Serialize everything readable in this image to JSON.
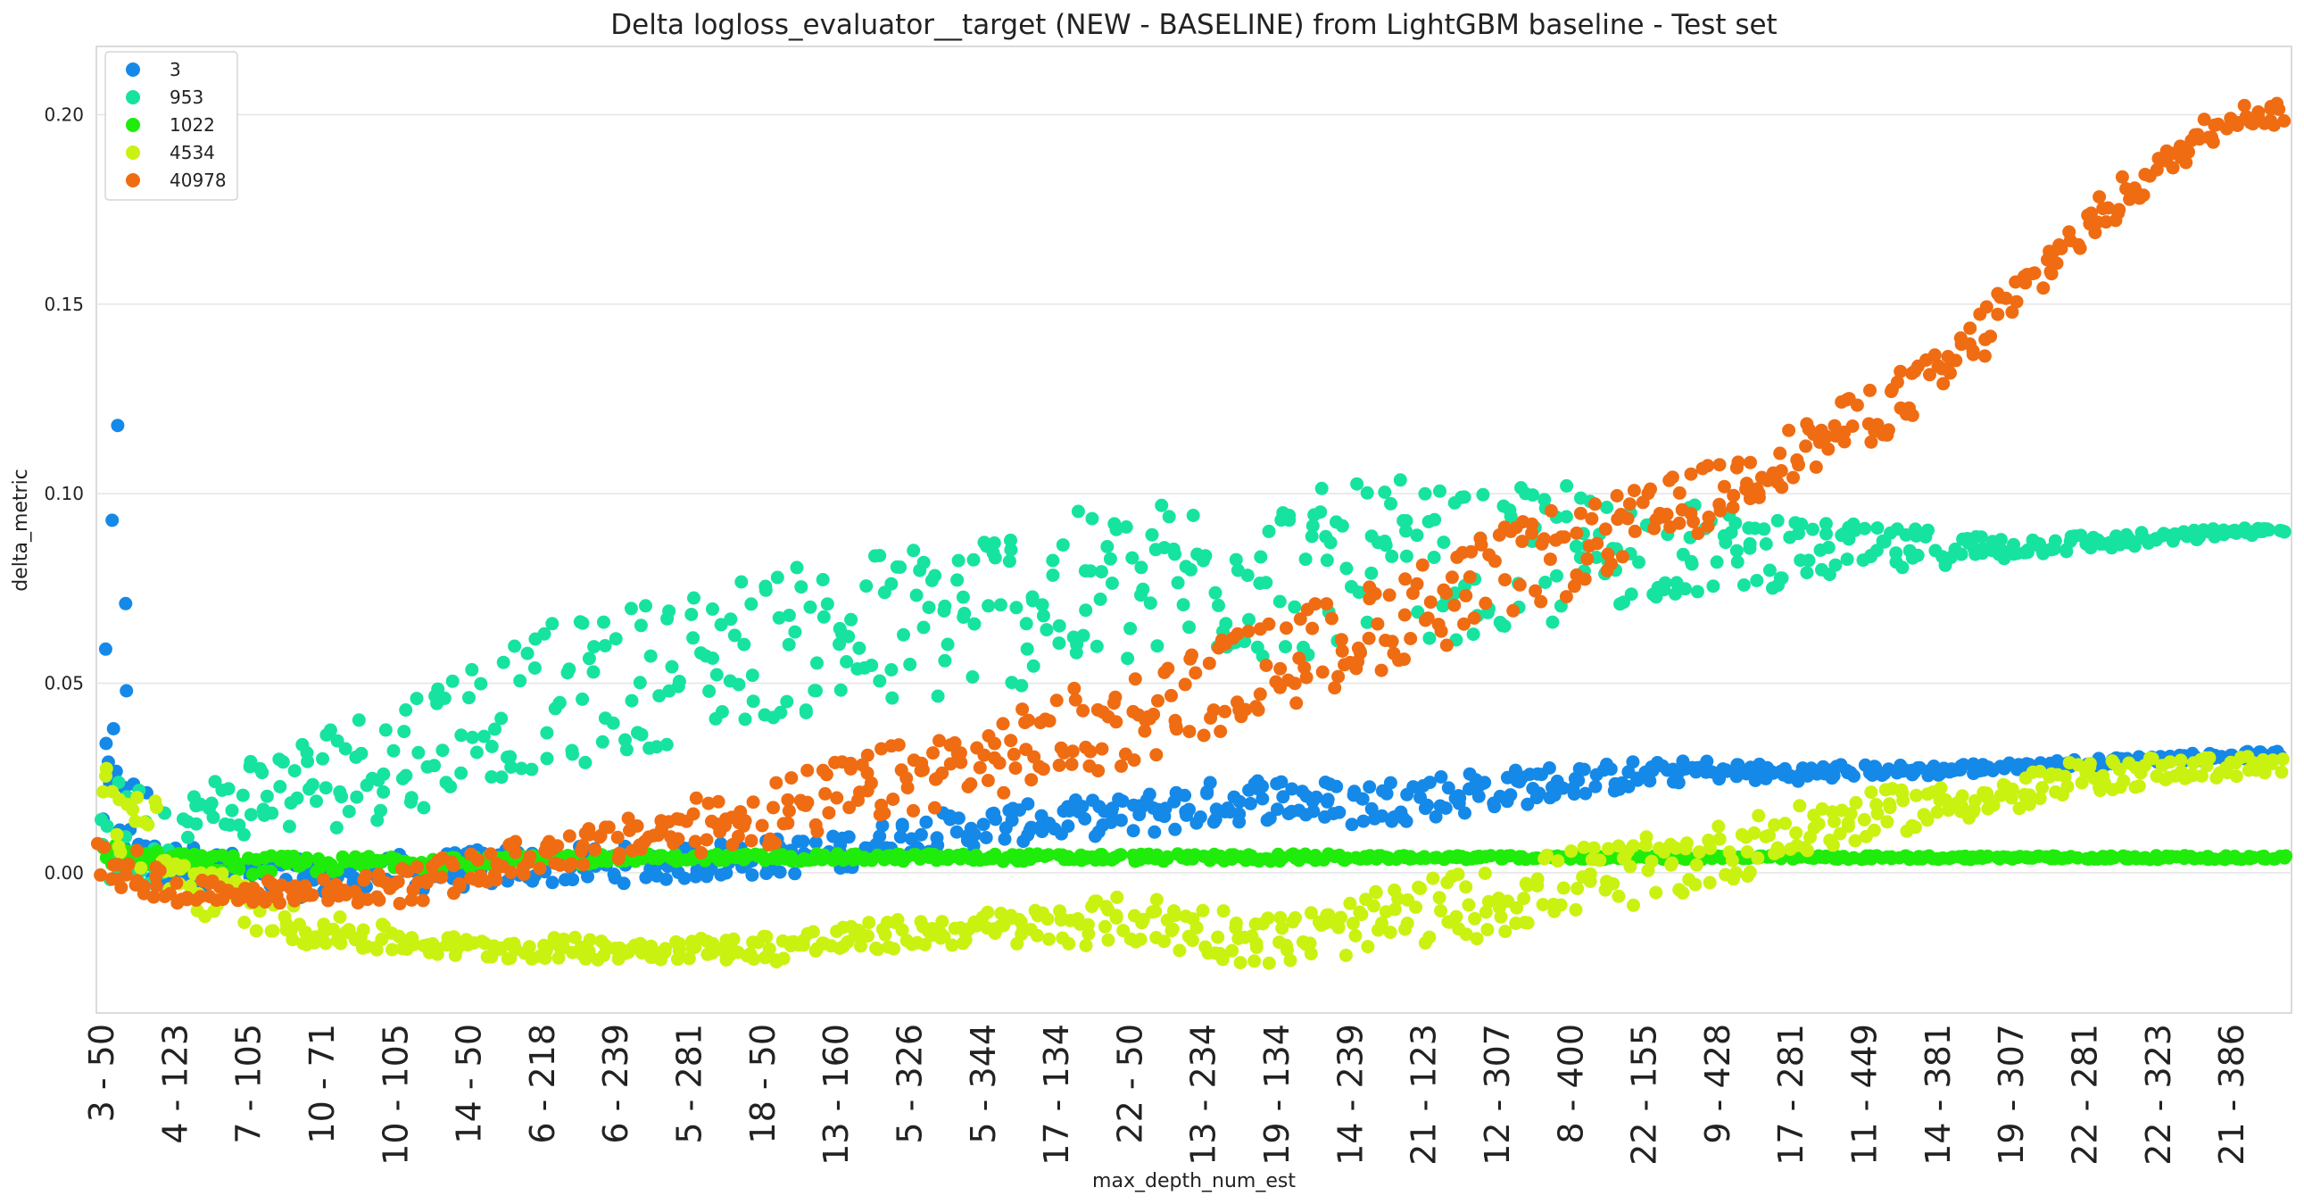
{
  "chart_data": {
    "type": "scatter",
    "title": "Delta logloss_evaluator__target (NEW - BASELINE) from LightGBM baseline - Test set",
    "xlabel": "max_depth_num_est",
    "ylabel": "delta_metric",
    "ylim": [
      -0.037,
      0.218
    ],
    "yticks": [
      "0.00",
      "0.05",
      "0.10",
      "0.15",
      "0.20"
    ],
    "ytick_values": [
      0.0,
      0.05,
      0.1,
      0.15,
      0.2
    ],
    "grid": true,
    "legend_position": "top-left",
    "x_tick_labels": [
      "3 - 50",
      "4 - 123",
      "7 - 105",
      "10 - 71",
      "10 - 105",
      "14 - 50",
      "6 - 218",
      "6 - 239",
      "5 - 281",
      "18 - 50",
      "13 - 160",
      "5 - 326",
      "5 - 344",
      "17 - 134",
      "22 - 50",
      "13 - 234",
      "19 - 134",
      "14 - 239",
      "21 - 123",
      "12 - 307",
      "8 - 400",
      "22 - 155",
      "9 - 428",
      "17 - 281",
      "11 - 449",
      "14 - 381",
      "19 - 307",
      "22 - 281",
      "22 - 323",
      "21 - 386"
    ],
    "n_ticks": 30,
    "series": [
      {
        "name": "3",
        "color": "#1589e8",
        "approx_centers": [
          0.02,
          0.003,
          0.0,
          -0.002,
          0.0,
          0.001,
          0.002,
          0.002,
          0.003,
          0.004,
          0.005,
          0.01,
          0.012,
          0.014,
          0.015,
          0.018,
          0.02,
          0.018,
          0.02,
          0.022,
          0.024,
          0.026,
          0.027,
          0.026,
          0.027,
          0.027,
          0.028,
          0.029,
          0.03,
          0.031
        ],
        "spread": [
          0.03,
          0.01,
          0.01,
          0.008,
          0.01,
          0.01,
          0.01,
          0.01,
          0.01,
          0.01,
          0.01,
          0.01,
          0.01,
          0.01,
          0.012,
          0.012,
          0.012,
          0.012,
          0.012,
          0.01,
          0.008,
          0.006,
          0.005,
          0.004,
          0.003,
          0.003,
          0.002,
          0.002,
          0.002,
          0.002
        ],
        "outliers": [
          {
            "x_index": 0,
            "y": 0.118
          },
          {
            "x_index": 0,
            "y": 0.093
          },
          {
            "x_index": 0,
            "y": 0.071
          },
          {
            "x_index": 0,
            "y": 0.059
          },
          {
            "x_index": 0,
            "y": 0.048
          },
          {
            "x_index": 0,
            "y": 0.038
          }
        ]
      },
      {
        "name": "953",
        "color": "#16e3a0",
        "approx_centers": [
          0.01,
          0.01,
          0.02,
          0.025,
          0.03,
          0.04,
          0.045,
          0.05,
          0.055,
          0.06,
          0.062,
          0.065,
          0.07,
          0.072,
          0.075,
          0.078,
          0.078,
          0.08,
          0.082,
          0.08,
          0.085,
          0.085,
          0.085,
          0.085,
          0.085,
          0.085,
          0.086,
          0.087,
          0.088,
          0.09
        ],
        "spread": [
          0.03,
          0.02,
          0.025,
          0.03,
          0.035,
          0.035,
          0.04,
          0.04,
          0.04,
          0.04,
          0.045,
          0.045,
          0.045,
          0.045,
          0.045,
          0.045,
          0.045,
          0.045,
          0.04,
          0.04,
          0.03,
          0.025,
          0.02,
          0.015,
          0.012,
          0.008,
          0.005,
          0.004,
          0.003,
          0.002
        ]
      },
      {
        "name": "1022",
        "color": "#1fec0b",
        "approx_centers": [
          0.005,
          0.003,
          0.002,
          0.002,
          0.003,
          0.003,
          0.003,
          0.004,
          0.004,
          0.004,
          0.004,
          0.004,
          0.004,
          0.004,
          0.004,
          0.004,
          0.004,
          0.004,
          0.004,
          0.004,
          0.004,
          0.004,
          0.004,
          0.004,
          0.004,
          0.004,
          0.004,
          0.004,
          0.004,
          0.004
        ],
        "spread": [
          0.006,
          0.005,
          0.005,
          0.004,
          0.004,
          0.003,
          0.003,
          0.002,
          0.002,
          0.002,
          0.002,
          0.002,
          0.002,
          0.002,
          0.002,
          0.002,
          0.002,
          0.001,
          0.001,
          0.001,
          0.001,
          0.001,
          0.001,
          0.001,
          0.001,
          0.001,
          0.001,
          0.001,
          0.001,
          0.001
        ]
      },
      {
        "name": "4534",
        "color": "#c9f211",
        "approx_centers": [
          0.02,
          0.0,
          -0.01,
          -0.015,
          -0.018,
          -0.02,
          -0.02,
          -0.02,
          -0.02,
          -0.02,
          -0.018,
          -0.016,
          -0.015,
          -0.014,
          -0.012,
          -0.015,
          -0.018,
          -0.015,
          -0.01,
          -0.008,
          -0.002,
          0.0,
          0.005,
          0.01,
          0.015,
          0.018,
          0.02,
          0.025,
          0.027,
          0.028
        ],
        "spread": [
          0.03,
          0.015,
          0.01,
          0.008,
          0.006,
          0.006,
          0.006,
          0.006,
          0.006,
          0.008,
          0.008,
          0.008,
          0.01,
          0.012,
          0.014,
          0.014,
          0.014,
          0.016,
          0.018,
          0.018,
          0.018,
          0.018,
          0.016,
          0.014,
          0.012,
          0.01,
          0.01,
          0.008,
          0.006,
          0.006
        ]
      },
      {
        "name": "40978",
        "color": "#ef6c13",
        "approx_centers": [
          0.005,
          -0.005,
          -0.005,
          -0.005,
          -0.004,
          0.0,
          0.005,
          0.008,
          0.012,
          0.015,
          0.02,
          0.025,
          0.03,
          0.035,
          0.04,
          0.048,
          0.055,
          0.062,
          0.07,
          0.078,
          0.085,
          0.092,
          0.1,
          0.11,
          0.12,
          0.13,
          0.15,
          0.17,
          0.185,
          0.2
        ],
        "spread": [
          0.012,
          0.006,
          0.006,
          0.008,
          0.01,
          0.01,
          0.01,
          0.012,
          0.015,
          0.018,
          0.02,
          0.02,
          0.022,
          0.025,
          0.025,
          0.025,
          0.025,
          0.025,
          0.025,
          0.025,
          0.02,
          0.018,
          0.015,
          0.015,
          0.015,
          0.015,
          0.012,
          0.01,
          0.008,
          0.006
        ]
      }
    ]
  }
}
